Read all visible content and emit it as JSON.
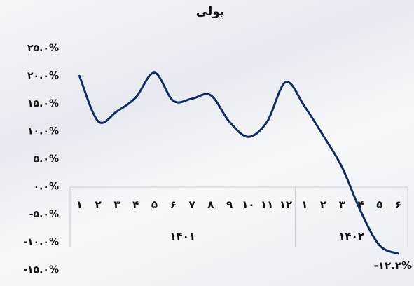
{
  "chart_data": {
    "type": "line",
    "title": "پولی",
    "xlabel": "",
    "ylabel": "",
    "ylim": [
      -15,
      25
    ],
    "y_ticks": [
      25,
      20,
      15,
      10,
      5,
      0,
      -5,
      -10,
      -15
    ],
    "y_tick_labels": [
      "۲۵.۰%",
      "۲۰.۰%",
      "۱۵.۰%",
      "۱۰.۰%",
      "۵.۰%",
      "۰.۰%",
      "-۵.۰%",
      "-۱۰.۰%",
      "-۱۵.۰%"
    ],
    "categories": [
      "۱",
      "۲",
      "۳",
      "۴",
      "۵",
      "۶",
      "۷",
      "۸",
      "۹",
      "۱۰",
      "۱۱",
      "۱۲",
      "۱",
      "۲",
      "۳",
      "۴",
      "۵",
      "۶"
    ],
    "groups": [
      {
        "label": "۱۴۰۱",
        "count": 12
      },
      {
        "label": "۱۴۰۲",
        "count": 6
      }
    ],
    "series": [
      {
        "values": [
          19.9,
          11.7,
          13.5,
          16.0,
          20.5,
          15.4,
          15.8,
          16.4,
          11.6,
          8.9,
          11.6,
          18.8,
          14.4,
          9.1,
          3.4,
          -4.6,
          -10.7,
          -12.2
        ]
      }
    ],
    "annotations": [
      {
        "text": "-۱۲.۲%",
        "index": 17,
        "value": -12.2
      }
    ],
    "grid": false,
    "legend": "none",
    "colors": {
      "line": "#152a5c",
      "axis": "#c9ced6"
    }
  }
}
